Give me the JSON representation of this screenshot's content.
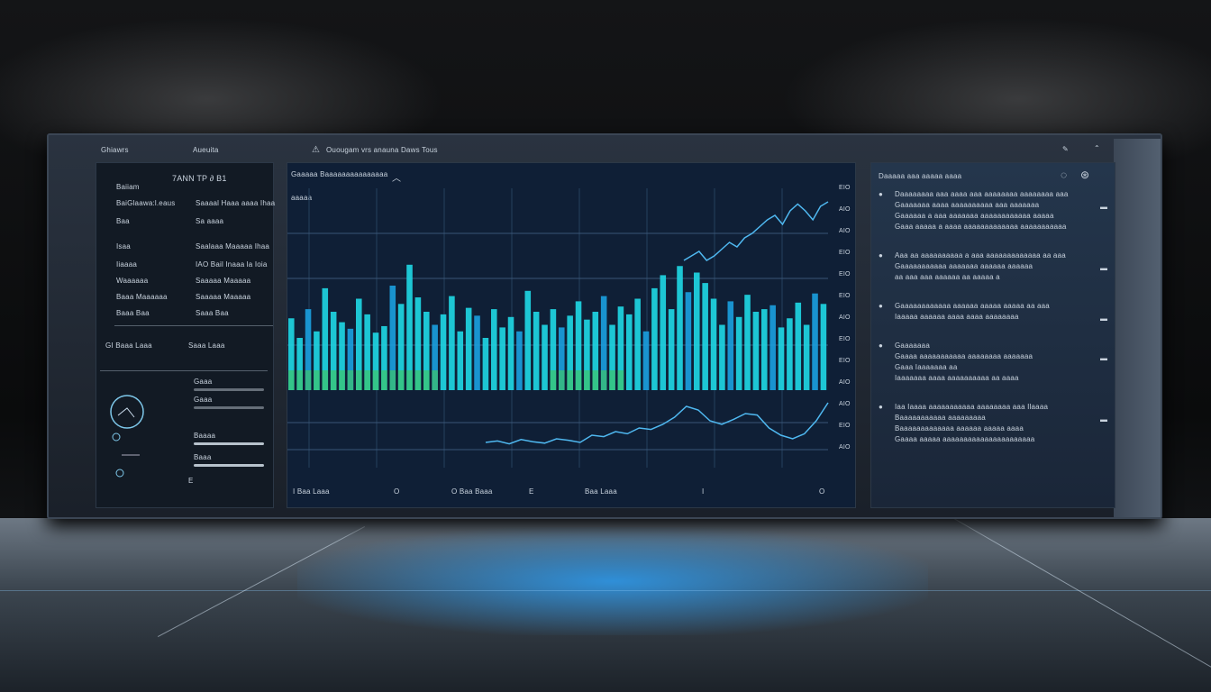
{
  "header": {
    "left_title": "Ghiawrs",
    "left_sub": "Aueuita",
    "center_title": "Ouougam vrs anauna Daws Tous",
    "center_icon": "alert-triangle-icon"
  },
  "left_panel": {
    "heading": "7ANN TP  ∂  B1",
    "rows": [
      {
        "label": "Baiiam",
        "value": ""
      },
      {
        "label": "BaiGlaawa:l.eaus",
        "value": "Saaaal Haaa aaaa Ihaa"
      },
      {
        "label": "Baa",
        "value": "Sa aaaa"
      },
      {
        "label": "Isaa",
        "value": "Saalaaa Maaaaa Ihaa"
      },
      {
        "label": "Iiaaaa",
        "value": "IAO Bail Inaaa la Ioia"
      },
      {
        "label": "Waaaaaa",
        "value": "Saaaaa Maaaaa"
      },
      {
        "label": "Baaa Maaaaaa",
        "value": "Saaaaa Maaaaa"
      },
      {
        "label": "Baaa Baa",
        "value": "Saaa Baa"
      }
    ],
    "footer_left": "GI Baaa Laaa",
    "footer_right": "Saaa Laaa",
    "controls": [
      {
        "label": "Gaaa",
        "level": 0.0
      },
      {
        "label": "Gaaa",
        "level": 0.0
      },
      {
        "label": "Baaaa",
        "level": 1.0
      },
      {
        "label": "Baaa",
        "level": 1.0
      }
    ],
    "footer_mark": "E"
  },
  "chart_panel": {
    "title": "Gaaaaa Baaaaaaaaaaaaaaa",
    "y_label": "aaaaa",
    "right_ticks": [
      "EIO",
      "AIO",
      "AIO",
      "EIO",
      "EIO",
      "EIO",
      "AIO",
      "EIO",
      "EIO",
      "AIO",
      "AIO",
      "EIO",
      "AIO"
    ],
    "footer": [
      "I Baa Laaa",
      "O",
      "O Baa Baaa",
      "E",
      "Baa Laaa",
      "I",
      "O"
    ],
    "bar_colors": [
      "#1fd8e6",
      "#1ba0e0",
      "#3fc46a"
    ]
  },
  "chart_data": {
    "type": "bar",
    "title": "",
    "values": [
      55,
      40,
      62,
      45,
      78,
      60,
      52,
      47,
      70,
      58,
      44,
      49,
      80,
      66,
      96,
      71,
      60,
      50,
      58,
      72,
      45,
      63,
      57,
      40,
      62,
      48,
      56,
      45,
      76,
      60,
      50,
      62,
      48,
      57,
      68,
      54,
      60,
      72,
      50,
      64,
      58,
      70,
      45,
      78,
      88,
      62,
      95,
      75,
      90,
      82,
      70,
      50,
      68,
      56,
      73,
      60,
      62,
      65,
      48,
      55,
      67,
      50,
      74,
      66
    ],
    "lines": [
      {
        "values": [
          10,
          12,
          8,
          14,
          11,
          9,
          15,
          13,
          10,
          20,
          18,
          25,
          22,
          30,
          28,
          35,
          45,
          60,
          55,
          40,
          35,
          42,
          50,
          48,
          30,
          20,
          15,
          22,
          40,
          65
        ]
      },
      {
        "values": [
          70,
          72,
          74,
          70,
          72,
          75,
          78,
          76,
          80,
          82,
          85,
          88,
          90,
          86,
          92,
          95,
          92,
          88,
          94,
          96
        ]
      }
    ]
  },
  "right_panel": {
    "title": "Daaaaa aaa  aaaaa aaaa",
    "items": [
      {
        "lines": [
          "Daaaaaaaa aaa aaaa aaa aaaaaaaa aaaaaaaa aaa",
          "Gaaaaaaa aaaa aaaaaaaaaa aaa aaaaaaa",
          "Gaaaaaa a aaa aaaaaaa aaaaaaaaaaaa aaaaa",
          "Gaaa aaaaa a aaaa aaaaaaaaaaaaa aaaaaaaaaaa"
        ]
      },
      {
        "lines": [
          "Aaa aa aaaaaaaaaa a aaa aaaaaaaaaaaaa aa aaa",
          "Gaaaaaaaaaaa aaaaaaa aaaaaa aaaaaa",
          "aa aaa aaa aaaaaa aa aaaaa a"
        ]
      },
      {
        "lines": [
          "Gaaaaaaaaaaaa aaaaaa aaaaa aaaaa aa aaa",
          "Iaaaaa aaaaaa aaaa aaaa aaaaaaaa"
        ]
      },
      {
        "lines": [
          "Gaaaaaaa",
          "Gaaaa aaaaaaaaaaa aaaaaaaa aaaaaaa",
          "Gaaa Iaaaaaaa aa",
          "Iaaaaaaa aaaa aaaaaaaaaa aa aaaa"
        ]
      },
      {
        "lines": [
          "Iaa Iaaaa aaaaaaaaaaa aaaaaaaa aaa Ilaaaa",
          "Baaaaaaaaaaa aaaaaaaaa",
          "Baaaaaaaaaaaaa aaaaaa aaaaa aaaa",
          "Gaaaa aaaaa aaaaaaaaaaaaaaaaaaaaaa"
        ]
      }
    ]
  }
}
